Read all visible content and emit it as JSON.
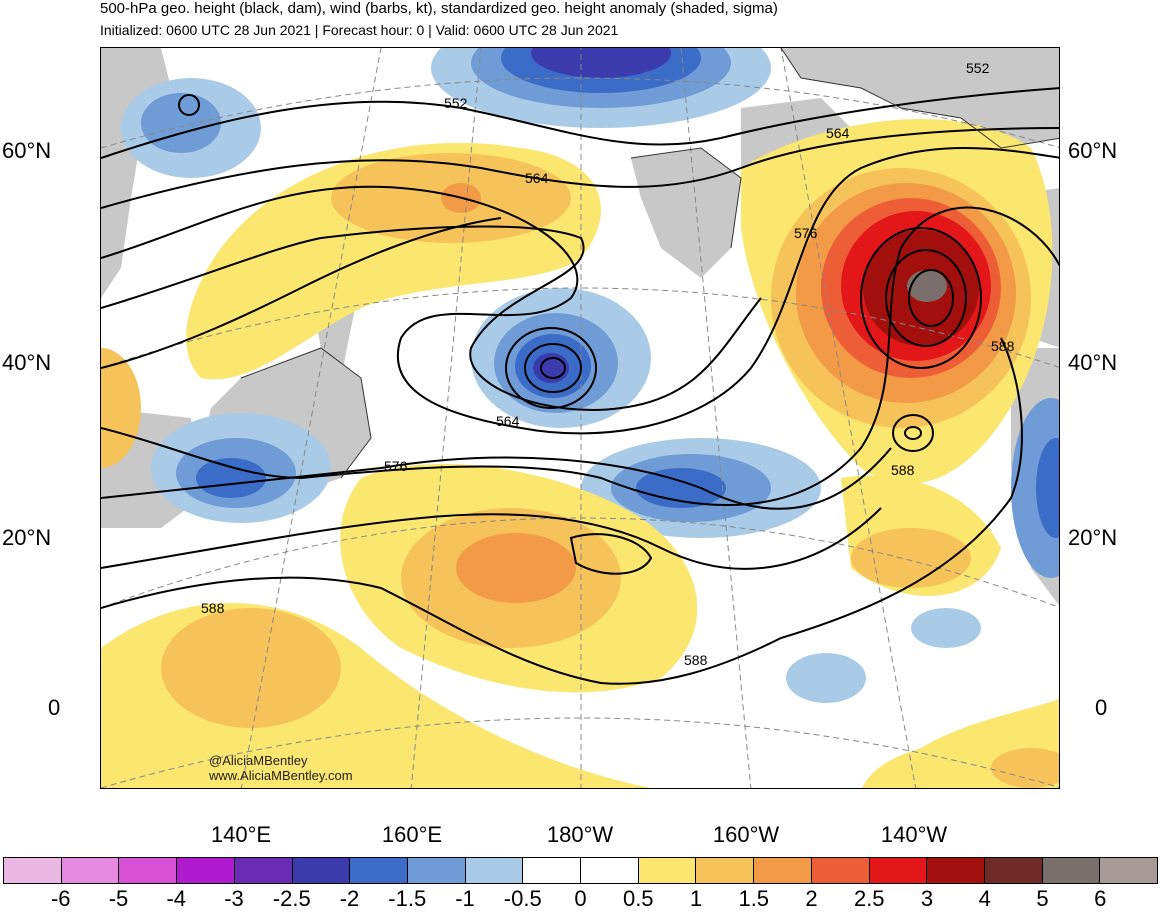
{
  "header": {
    "title": "500-hPa geo. height (black, dam), wind (barbs, kt), standardized geo. height anomaly (shaded, sigma)",
    "subtitle": "Initialized: 0600 UTC 28 Jun 2021 | Forecast hour: 0 | Valid: 0600 UTC 28 Jun 2021"
  },
  "map": {
    "lat_labels_left": [
      "60°N",
      "40°N",
      "20°N",
      "0"
    ],
    "lat_labels_right": [
      "60°N",
      "40°N",
      "20°N",
      "0"
    ],
    "lon_labels": [
      "140°E",
      "160°E",
      "180°W",
      "160°W",
      "140°W"
    ],
    "contour_labels": [
      "552",
      "552",
      "564",
      "564",
      "576",
      "576",
      "588",
      "588",
      "588",
      "588"
    ],
    "credit_handle": "@AliciaMBentley",
    "credit_site": "www.AliciaMBentley.com",
    "land_color": "#c8c8c8",
    "contour_color": "#000000"
  },
  "colorbar": {
    "ticks": [
      "-6",
      "-5",
      "-4",
      "-3",
      "-2.5",
      "-2",
      "-1.5",
      "-1",
      "-0.5",
      "0",
      "0.5",
      "1",
      "1.5",
      "2",
      "2.5",
      "3",
      "4",
      "5",
      "6"
    ],
    "colors": [
      "#ebb8e6",
      "#e58ae0",
      "#d94fd6",
      "#b01bcf",
      "#6a2cb4",
      "#3b3bae",
      "#3b6cc7",
      "#6f9bd6",
      "#a9cbe8",
      "#ffffff",
      "#ffffff",
      "#fbe66f",
      "#f6c25a",
      "#f39a46",
      "#ee5e36",
      "#e3161a",
      "#a30f0c",
      "#6f2b26",
      "#7a6f6d",
      "#a89a98"
    ]
  }
}
